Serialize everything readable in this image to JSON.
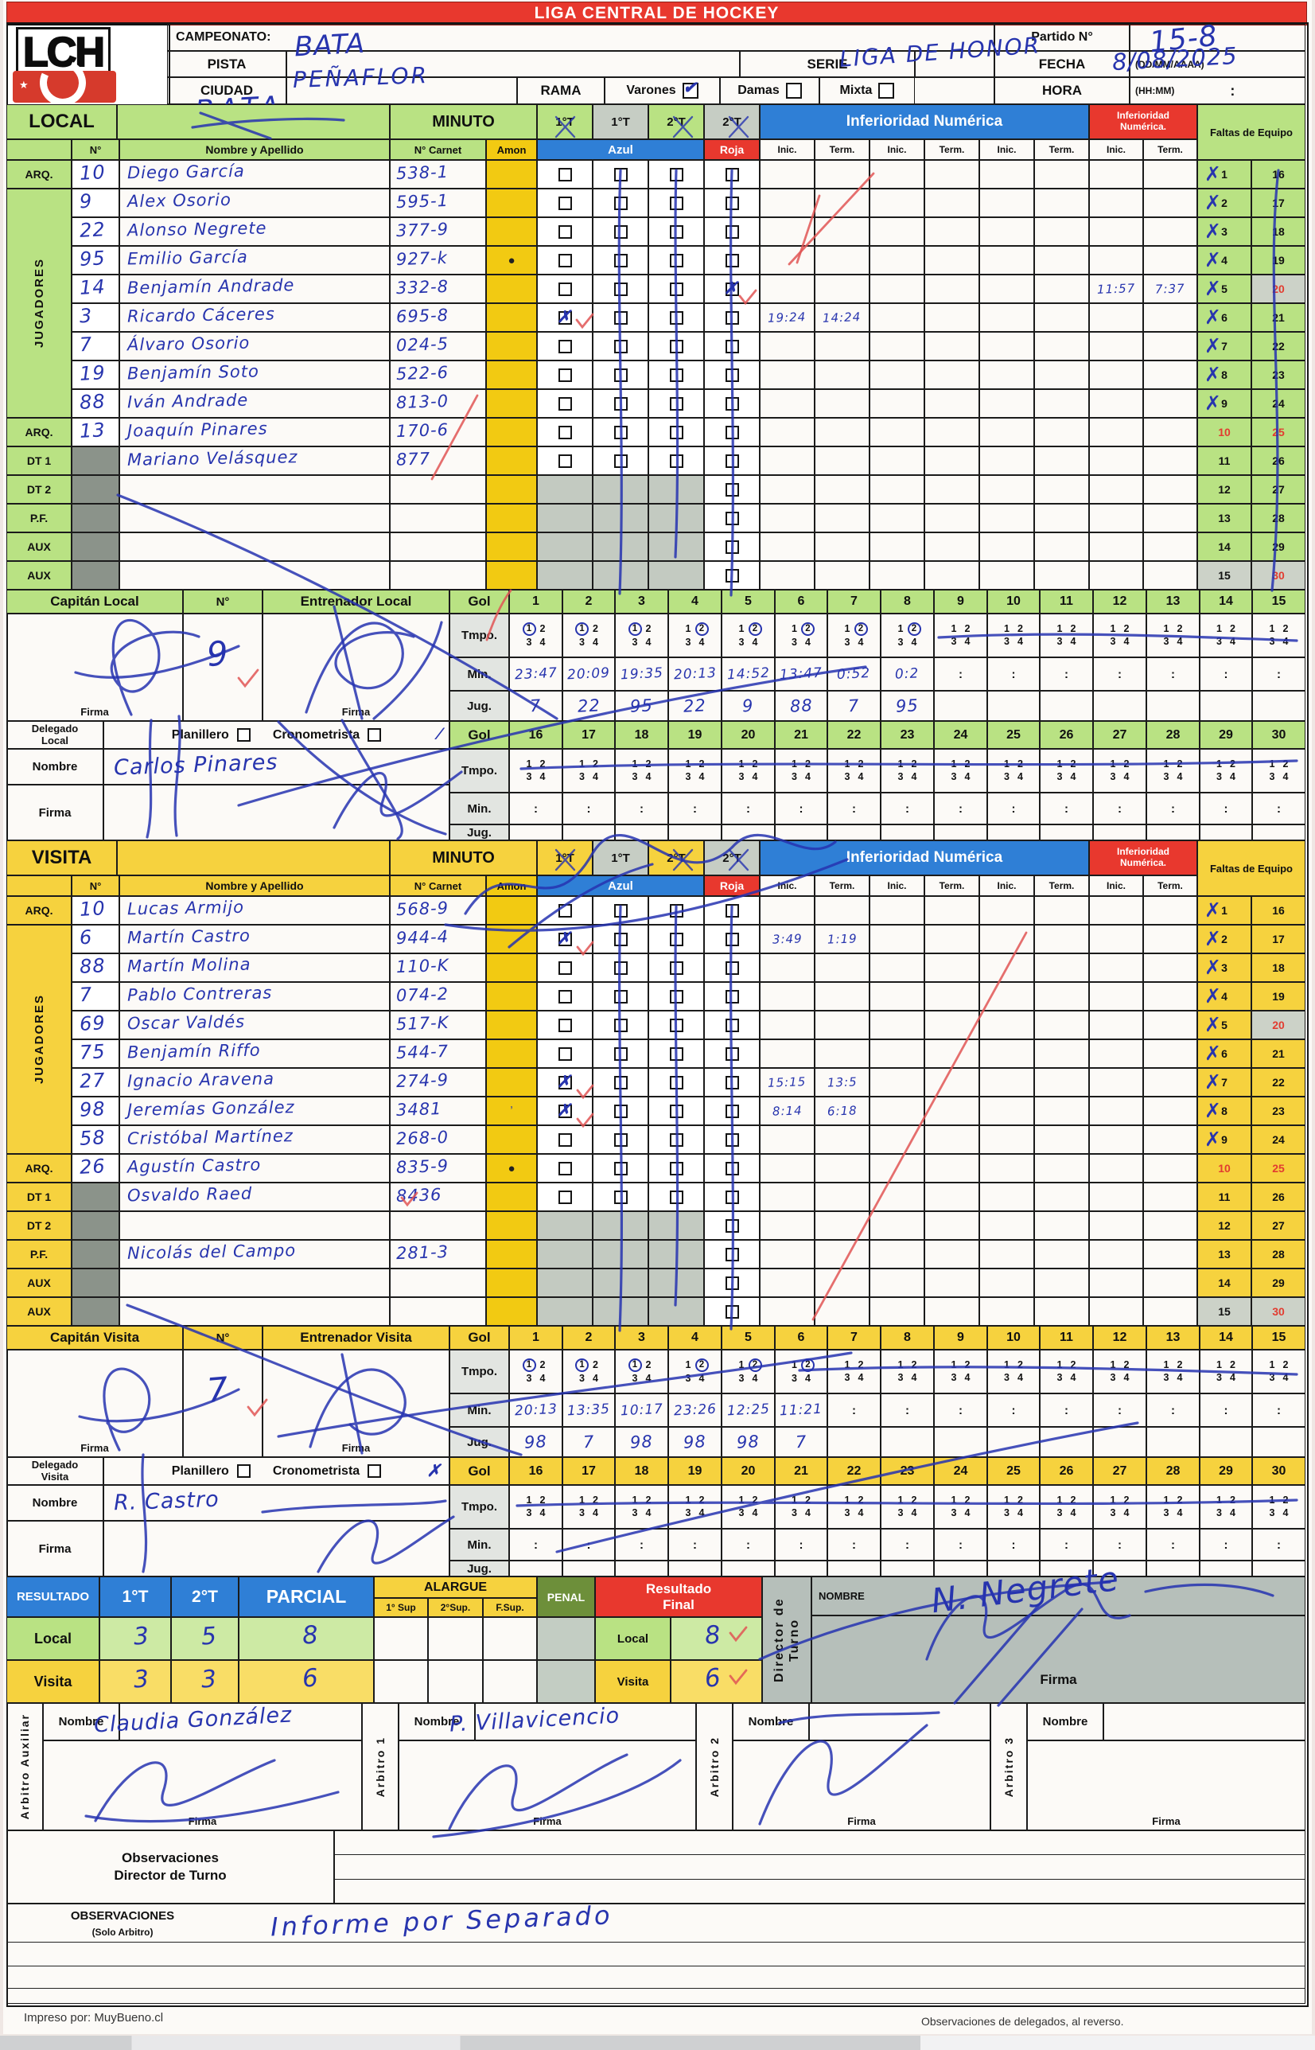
{
  "banner": {
    "title": "LIGA CENTRAL DE HOCKEY"
  },
  "logo": {
    "text": "LCH"
  },
  "meta": {
    "campeonato_label": "CAMPEONATO:",
    "pista_label": "PISTA",
    "pista_value": "BATA",
    "ciudad_label": "CIUDAD",
    "ciudad_value": "PEÑAFLOR",
    "serie_label": "SERIE",
    "serie_value": "LIGA DE HONOR",
    "rama_label": "RAMA",
    "varones_label": "Varones",
    "damas_label": "Damas",
    "mixta_label": "Mixta",
    "partido_label": "Partido N°",
    "partido_value": "15-8",
    "fecha_label": "FECHA",
    "fecha_format": "(DD/MM/AAAA)",
    "fecha_value": "8/08/2025",
    "hora_label": "HORA",
    "hora_format": "(HH:MM)",
    "hora_value": ":"
  },
  "table_labels": {
    "minuto": "MINUTO",
    "periods": [
      "1°T",
      "1°T",
      "2°T",
      "2°T"
    ],
    "inferioridad": "Inferioridad Numérica",
    "inferioridad2": "Inferioridad Numérica.",
    "faltas": "Faltas de Equipo",
    "num": "N°",
    "nombre": "Nombre y Apellido",
    "carnet": "N° Carnet",
    "amon": "Amon",
    "azul": "Azul",
    "roja": "Roja",
    "inic": "Inic.",
    "term": "Term.",
    "jugadores": "JUGADORES",
    "tmpo": "Tmpo.",
    "min": "Min.",
    "jug": "Jug.",
    "gol": "Gol",
    "nombre_row": "Nombre",
    "firma": "Firma",
    "planillero": "Planillero",
    "cronometrista": "Cronometrista"
  },
  "local": {
    "key": "local",
    "label": "LOCAL",
    "team": "BATA",
    "capitan_label": "Capitán Local",
    "capitan_num": "9",
    "entrenador_label": "Entrenador Local",
    "delegado_label": "Delegado Local",
    "delegado_nombre": "Carlos Pinares",
    "players": [
      {
        "role": "ARQ.",
        "num": "10",
        "name": "Diego García",
        "carnet": "538-1"
      },
      {
        "num": "9",
        "name": "Alex Osorio",
        "carnet": "595-1"
      },
      {
        "num": "22",
        "name": "Alonso Negrete",
        "carnet": "377-9"
      },
      {
        "num": "95",
        "name": "Emilio García",
        "carnet": "927-k",
        "amon": "●"
      },
      {
        "num": "14",
        "name": "Benjamín Andrade",
        "carnet": "332-8",
        "chk": [
          "",
          "",
          "",
          "x"
        ],
        "it": [
          "",
          "",
          "",
          "",
          "",
          "",
          "11:57",
          "7:37"
        ]
      },
      {
        "num": "3",
        "name": "Ricardo Cáceres",
        "carnet": "695-8",
        "chk": [
          "x",
          "",
          "",
          ""
        ],
        "it": [
          "19:24",
          "14:24",
          "",
          "",
          "",
          "",
          "",
          ""
        ]
      },
      {
        "num": "7",
        "name": "Álvaro Osorio",
        "carnet": "024-5"
      },
      {
        "num": "19",
        "name": "Benjamín Soto",
        "carnet": "522-6"
      },
      {
        "num": "88",
        "name": "Iván Andrade",
        "carnet": "813-0"
      },
      {
        "role": "ARQ.",
        "num": "13",
        "name": "Joaquín Pinares",
        "carnet": "170-6"
      },
      {
        "role": "DT 1",
        "name": "Mariano Velásquez",
        "carnet": "877"
      },
      {
        "role": "DT 2"
      },
      {
        "role": "P.F."
      },
      {
        "role": "AUX"
      },
      {
        "role": "AUX"
      }
    ],
    "goles": {
      "circ": [
        1,
        1,
        1,
        2,
        2,
        2,
        2,
        2
      ],
      "min": [
        "23:47",
        "20:09",
        "19:35",
        "20:13",
        "14:52",
        "13:47",
        "0:52",
        "0:2"
      ],
      "jug": [
        "7",
        "22",
        "95",
        "22",
        "9",
        "88",
        "7",
        "95"
      ]
    }
  },
  "visita": {
    "key": "visita",
    "label": "VISITA",
    "team": "",
    "capitan_label": "Capitán Visita",
    "capitan_num": "7",
    "entrenador_label": "Entrenador Visita",
    "delegado_label": "Delegado Visita",
    "delegado_nombre": "R. Castro",
    "players": [
      {
        "role": "ARQ.",
        "num": "10",
        "name": "Lucas Armijo",
        "carnet": "568-9"
      },
      {
        "num": "6",
        "name": "Martín Castro",
        "carnet": "944-4",
        "chk": [
          "x",
          "",
          "",
          ""
        ],
        "it": [
          "3:49",
          "1:19",
          "",
          "",
          "",
          "",
          "",
          ""
        ]
      },
      {
        "num": "88",
        "name": "Martín Molina",
        "carnet": "110-K"
      },
      {
        "num": "7",
        "name": "Pablo Contreras",
        "carnet": "074-2"
      },
      {
        "num": "69",
        "name": "Oscar Valdés",
        "carnet": "517-K"
      },
      {
        "num": "75",
        "name": "Benjamín Riffo",
        "carnet": "544-7"
      },
      {
        "num": "27",
        "name": "Ignacio Aravena",
        "carnet": "274-9",
        "chk": [
          "x",
          "",
          "",
          ""
        ],
        "it": [
          "15:15",
          "13:5",
          "",
          "",
          "",
          "",
          "",
          ""
        ]
      },
      {
        "num": "98",
        "name": "Jeremías González",
        "carnet": "3481",
        "amon": "ʼ",
        "chk": [
          "x",
          "",
          "",
          ""
        ],
        "it": [
          "8:14",
          "6:18",
          "",
          "",
          "",
          "",
          "",
          ""
        ]
      },
      {
        "num": "58",
        "name": "Cristóbal Martínez",
        "carnet": "268-0"
      },
      {
        "role": "ARQ.",
        "num": "26",
        "name": "Agustín Castro",
        "carnet": "835-9",
        "amon": "●"
      },
      {
        "role": "DT 1",
        "name": "Osvaldo Raed",
        "carnet": "8436"
      },
      {
        "role": "DT 2"
      },
      {
        "role": "P.F.",
        "name": "Nicolás del Campo",
        "carnet": "281-3"
      },
      {
        "role": "AUX"
      },
      {
        "role": "AUX"
      }
    ],
    "goles": {
      "circ": [
        1,
        1,
        1,
        2,
        2,
        2
      ],
      "min": [
        "20:13",
        "13:35",
        "10:17",
        "23:26",
        "12:25",
        "11:21"
      ],
      "jug": [
        "98",
        "7",
        "98",
        "98",
        "98",
        "7"
      ]
    }
  },
  "resultado": {
    "label": "RESULTADO",
    "t1": "1°T",
    "t2": "2°T",
    "parcial": "PARCIAL",
    "alargue": "ALARGUE",
    "sup1": "1° Sup",
    "sup2": "2°Sup.",
    "fsup": "F.Sup.",
    "penal": "PENAL",
    "final_label": "Resultado Final",
    "local_label": "Local",
    "visita_label": "Visita",
    "local_vals": [
      "3",
      "5",
      "8"
    ],
    "visita_vals": [
      "3",
      "3",
      "6"
    ],
    "final_local": "8",
    "final_visita": "6"
  },
  "director": {
    "label": "Director de Turno",
    "nombre_label": "NOMBRE",
    "firma_label": "Firma",
    "nombre_value": "N. Negrete"
  },
  "arbitros": [
    {
      "label": "Arbitro Auxiliar",
      "nombre": "Claudia González"
    },
    {
      "label": "Arbitro 1",
      "nombre": "P. Villavicencio"
    },
    {
      "label": "Arbitro 2",
      "nombre": ""
    },
    {
      "label": "Arbitro 3",
      "nombre": ""
    }
  ],
  "observaciones": {
    "director_line1": "Observaciones",
    "director_line2": "Director de Turno",
    "solo_line1": "OBSERVACIONES",
    "solo_line2": "(Solo Arbitro)",
    "texto": "Informe por Separado"
  },
  "footer": {
    "left": "Impreso por: MuyBueno.cl",
    "right": "Observaciones de delegados, al reverso."
  }
}
